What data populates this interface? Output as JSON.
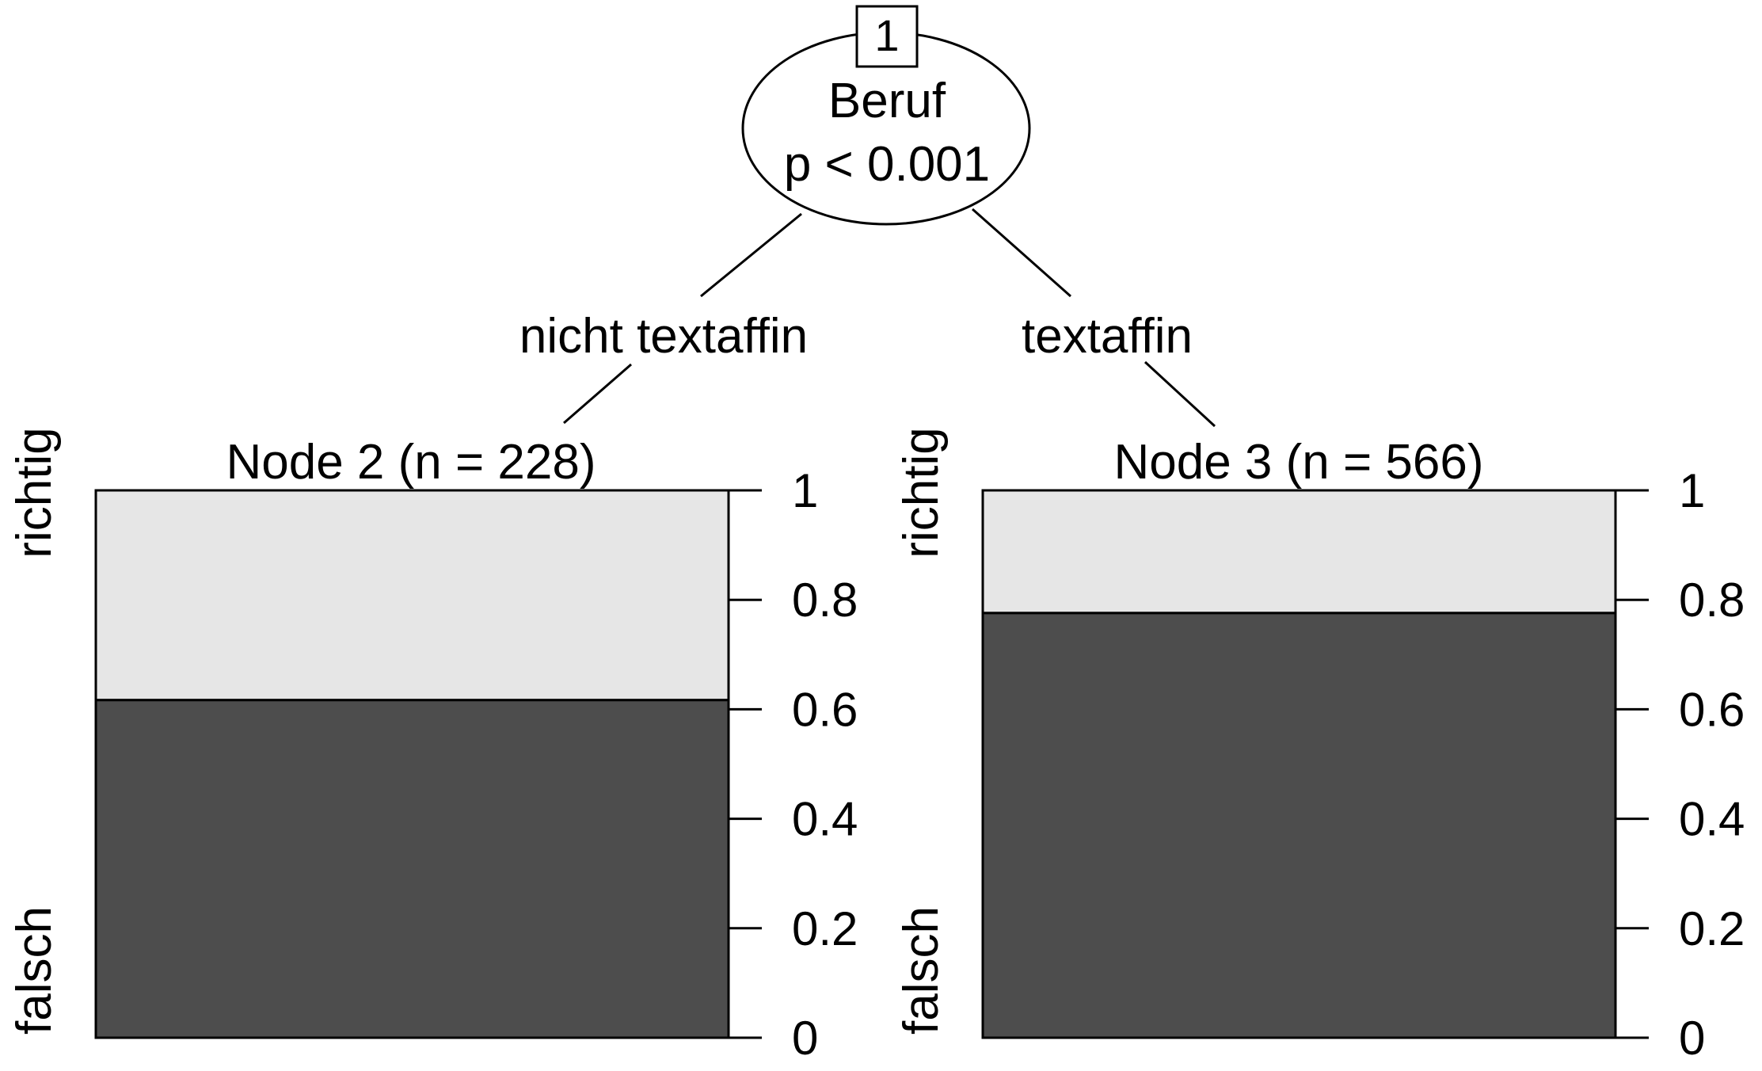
{
  "colors": {
    "falsch": "#4d4d4d",
    "richtig": "#e6e6e6",
    "stroke": "#000000"
  },
  "root": {
    "id": "1",
    "variable": "Beruf",
    "p_value": "p < 0.001"
  },
  "edges": [
    {
      "label": "nicht textaffin"
    },
    {
      "label": "textaffin"
    }
  ],
  "chart_data": [
    {
      "type": "bar",
      "title": "Node 2 (n = 228)",
      "categories": [
        "falsch",
        "richtig"
      ],
      "values": [
        0.617,
        0.383
      ],
      "ylim": [
        0,
        1
      ],
      "ticks": [
        "0",
        "0.2",
        "0.4",
        "0.6",
        "0.8",
        "1"
      ]
    },
    {
      "type": "bar",
      "title": "Node 3 (n = 566)",
      "categories": [
        "falsch",
        "richtig"
      ],
      "values": [
        0.776,
        0.224
      ],
      "ylim": [
        0,
        1
      ],
      "ticks": [
        "0",
        "0.2",
        "0.4",
        "0.6",
        "0.8",
        "1"
      ]
    }
  ]
}
